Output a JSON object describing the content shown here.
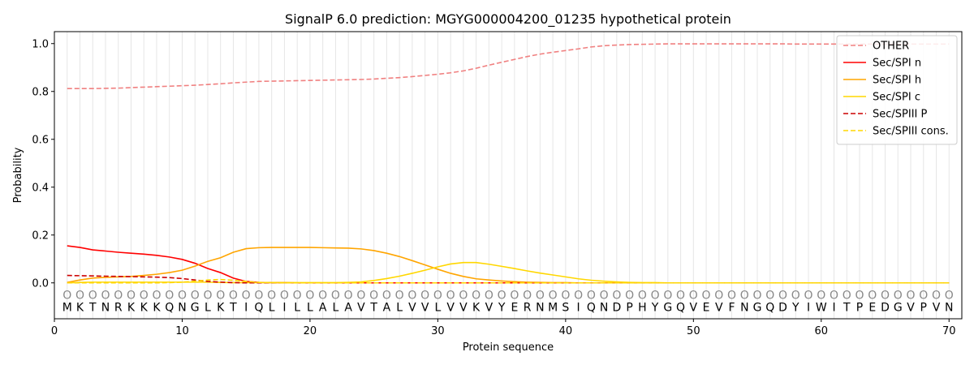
{
  "chart_data": {
    "type": "line",
    "title": "SignalP 6.0 prediction: MGYG000004200_01235 hypothetical protein",
    "xlabel": "Protein sequence",
    "ylabel": "Probability",
    "xlim": [
      0,
      71
    ],
    "ylim": [
      -0.15,
      1.05
    ],
    "x_ticks": [
      0,
      10,
      20,
      30,
      40,
      50,
      60,
      70
    ],
    "y_ticks": [
      0.0,
      0.2,
      0.4,
      0.6,
      0.8,
      1.0
    ],
    "x_tick_labels": [
      "0",
      "10",
      "20",
      "30",
      "40",
      "50",
      "60",
      "70"
    ],
    "y_tick_labels": [
      "0.0",
      "0.2",
      "0.4",
      "0.6",
      "0.8",
      "1.0"
    ],
    "grid": "vertical lines at each residue",
    "legend_position": "top-right",
    "sequence": [
      "M",
      "K",
      "T",
      "N",
      "R",
      "K",
      "K",
      "K",
      "Q",
      "N",
      "G",
      "L",
      "K",
      "T",
      "I",
      "Q",
      "L",
      "I",
      "L",
      "L",
      "A",
      "L",
      "A",
      "V",
      "T",
      "A",
      "L",
      "V",
      "V",
      "L",
      "V",
      "V",
      "K",
      "V",
      "Y",
      "E",
      "R",
      "N",
      "M",
      "S",
      "I",
      "Q",
      "N",
      "D",
      "P",
      "H",
      "Y",
      "G",
      "Q",
      "V",
      "E",
      "V",
      "F",
      "N",
      "G",
      "Q",
      "D",
      "Y",
      "I",
      "W",
      "I",
      "T",
      "P",
      "E",
      "D",
      "G",
      "V",
      "P",
      "V",
      "N"
    ],
    "predicted_class_label": "O",
    "series": [
      {
        "name": "OTHER",
        "color": "#f08080",
        "style": "dashed",
        "values": [
          0.812,
          0.812,
          0.812,
          0.813,
          0.814,
          0.816,
          0.818,
          0.82,
          0.822,
          0.824,
          0.826,
          0.829,
          0.832,
          0.836,
          0.839,
          0.842,
          0.843,
          0.844,
          0.845,
          0.846,
          0.847,
          0.848,
          0.849,
          0.85,
          0.852,
          0.855,
          0.858,
          0.862,
          0.867,
          0.872,
          0.878,
          0.886,
          0.897,
          0.91,
          0.922,
          0.934,
          0.946,
          0.956,
          0.964,
          0.971,
          0.978,
          0.986,
          0.991,
          0.994,
          0.996,
          0.997,
          0.998,
          0.999,
          0.999,
          0.999,
          0.999,
          0.999,
          0.999,
          0.999,
          0.999,
          0.999,
          0.999,
          0.998,
          0.998,
          0.998,
          0.998,
          0.998,
          0.998,
          0.998,
          0.998,
          0.998,
          0.998,
          0.998,
          0.998,
          0.998
        ]
      },
      {
        "name": "Sec/SPI n",
        "color": "#ff0000",
        "style": "solid",
        "values": [
          0.155,
          0.148,
          0.138,
          0.133,
          0.128,
          0.124,
          0.12,
          0.115,
          0.108,
          0.098,
          0.082,
          0.06,
          0.043,
          0.02,
          0.006,
          0.002,
          0.001,
          0.001,
          0.0,
          0.0,
          0.0,
          0.0,
          0.0,
          0.0,
          0.0,
          0.0,
          0.0,
          0.0,
          0.0,
          0.0,
          0.0,
          0.0,
          0.0,
          0.0,
          0.0,
          0.0,
          0.0,
          0.0,
          0.0,
          0.0,
          0.0,
          0.0,
          0.0,
          0.0,
          0.0,
          0.0,
          0.0,
          0.0,
          0.0,
          0.0,
          0.0,
          0.0,
          0.0,
          0.0,
          0.0,
          0.0,
          0.0,
          0.0,
          0.0,
          0.0,
          0.0,
          0.0,
          0.0,
          0.0,
          0.0,
          0.0,
          0.0,
          0.0,
          0.0,
          0.0
        ]
      },
      {
        "name": "Sec/SPI h",
        "color": "#ffa500",
        "style": "solid",
        "values": [
          0.002,
          0.012,
          0.02,
          0.023,
          0.025,
          0.027,
          0.031,
          0.036,
          0.043,
          0.053,
          0.07,
          0.09,
          0.105,
          0.128,
          0.143,
          0.147,
          0.148,
          0.148,
          0.148,
          0.148,
          0.147,
          0.146,
          0.145,
          0.142,
          0.135,
          0.124,
          0.11,
          0.093,
          0.075,
          0.057,
          0.04,
          0.027,
          0.017,
          0.012,
          0.008,
          0.005,
          0.003,
          0.002,
          0.001,
          0.001,
          0.0,
          0.0,
          0.0,
          0.0,
          0.0,
          0.0,
          0.0,
          0.0,
          0.0,
          0.0,
          0.0,
          0.0,
          0.0,
          0.0,
          0.0,
          0.0,
          0.0,
          0.0,
          0.0,
          0.0,
          0.0,
          0.0,
          0.0,
          0.0,
          0.0,
          0.0,
          0.0,
          0.0,
          0.0,
          0.0
        ]
      },
      {
        "name": "Sec/SPI c",
        "color": "#ffd700",
        "style": "solid",
        "values": [
          0.0,
          0.002,
          0.003,
          0.003,
          0.003,
          0.003,
          0.003,
          0.003,
          0.003,
          0.003,
          0.003,
          0.003,
          0.002,
          0.001,
          0.001,
          0.001,
          0.001,
          0.001,
          0.001,
          0.001,
          0.001,
          0.001,
          0.002,
          0.004,
          0.01,
          0.018,
          0.028,
          0.04,
          0.053,
          0.067,
          0.079,
          0.085,
          0.085,
          0.078,
          0.069,
          0.06,
          0.05,
          0.041,
          0.033,
          0.025,
          0.017,
          0.011,
          0.007,
          0.004,
          0.002,
          0.001,
          0.001,
          0.0,
          0.0,
          0.0,
          0.0,
          0.0,
          0.0,
          0.0,
          0.0,
          0.0,
          0.0,
          0.0,
          0.0,
          0.0,
          0.0,
          0.0,
          0.0,
          0.0,
          0.0,
          0.0,
          0.0,
          0.0,
          0.0,
          0.0
        ]
      },
      {
        "name": "Sec/SPIII P",
        "color": "#cc0000",
        "style": "dashed",
        "values": [
          0.031,
          0.03,
          0.029,
          0.028,
          0.027,
          0.026,
          0.025,
          0.024,
          0.022,
          0.018,
          0.012,
          0.006,
          0.003,
          0.001,
          0.0,
          0.0,
          0.0,
          0.0,
          0.0,
          0.0,
          0.0,
          0.0,
          0.0,
          0.0,
          0.0,
          0.0,
          0.0,
          0.0,
          0.0,
          0.0,
          0.0,
          0.0,
          0.0,
          0.0,
          0.0,
          0.0,
          0.0,
          0.0,
          0.0,
          0.0,
          0.0,
          0.0,
          0.0,
          0.0,
          0.0,
          0.0,
          0.0,
          0.0,
          0.0,
          0.0,
          0.0,
          0.0,
          0.0,
          0.0,
          0.0,
          0.0,
          0.0,
          0.0,
          0.0,
          0.0,
          0.0,
          0.0,
          0.0,
          0.0,
          0.0,
          0.0,
          0.0,
          0.0,
          0.0,
          0.0
        ]
      },
      {
        "name": "Sec/SPIII cons.",
        "color": "#ffd700",
        "style": "dashed",
        "values": [
          0.0,
          0.0,
          0.0,
          0.0,
          0.0,
          0.0,
          0.0,
          0.0,
          0.001,
          0.003,
          0.007,
          0.012,
          0.014,
          0.011,
          0.006,
          0.002,
          0.001,
          0.0,
          0.0,
          0.0,
          0.0,
          0.0,
          0.0,
          0.0,
          0.0,
          0.0,
          0.0,
          0.0,
          0.0,
          0.0,
          0.0,
          0.0,
          0.0,
          0.0,
          0.0,
          0.0,
          0.0,
          0.0,
          0.0,
          0.0,
          0.0,
          0.0,
          0.0,
          0.0,
          0.0,
          0.0,
          0.0,
          0.0,
          0.0,
          0.0,
          0.0,
          0.0,
          0.0,
          0.0,
          0.0,
          0.0,
          0.0,
          0.0,
          0.0,
          0.0,
          0.0,
          0.0,
          0.0,
          0.0,
          0.0,
          0.0,
          0.0,
          0.0,
          0.0,
          0.0
        ]
      }
    ]
  }
}
